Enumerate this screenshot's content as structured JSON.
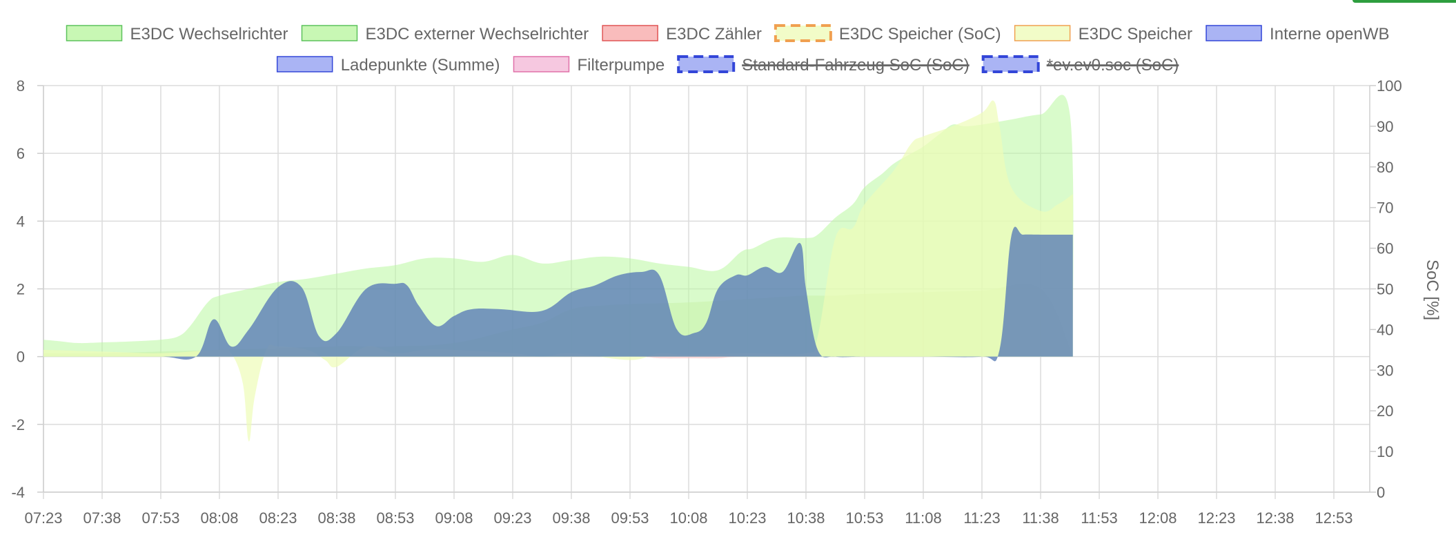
{
  "chart_data": {
    "type": "area",
    "x_ticks": [
      "07:23",
      "07:38",
      "07:53",
      "08:08",
      "08:23",
      "08:38",
      "08:53",
      "09:08",
      "09:23",
      "09:38",
      "09:53",
      "10:08",
      "10:23",
      "10:38",
      "10:53",
      "11:08",
      "11:23",
      "11:38",
      "11:53",
      "12:08",
      "12:23",
      "12:38",
      "12:53"
    ],
    "y_left": {
      "min": -4,
      "max": 8,
      "ticks": [
        8,
        6,
        4,
        2,
        0,
        -2,
        -4
      ]
    },
    "y_right": {
      "min": 0,
      "max": 100,
      "ticks": [
        100,
        90,
        80,
        70,
        60,
        50,
        40,
        30,
        20,
        10,
        0
      ],
      "label": "SoC [%]"
    },
    "grid": true,
    "legend_position": "top",
    "legend": [
      {
        "label": "E3DC Wechselrichter",
        "fill": "#c8f7b4",
        "stroke": "#5cc25c",
        "dashed": false,
        "hidden": false
      },
      {
        "label": "E3DC externer Wechselrichter",
        "fill": "#c8f7b4",
        "stroke": "#5cc25c",
        "dashed": false,
        "hidden": false
      },
      {
        "label": "E3DC Zähler",
        "fill": "#f9bcbc",
        "stroke": "#e05555",
        "dashed": false,
        "hidden": false
      },
      {
        "label": "E3DC Speicher (SoC)",
        "fill": "#f2fcc8",
        "stroke": "#f0a050",
        "dashed": true,
        "hidden": false
      },
      {
        "label": "E3DC Speicher",
        "fill": "#f2fcc8",
        "stroke": "#f0a050",
        "dashed": false,
        "hidden": false
      },
      {
        "label": "Interne openWB",
        "fill": "#aab4f4",
        "stroke": "#3346d8",
        "dashed": false,
        "hidden": false
      },
      {
        "label": "Ladepunkte (Summe)",
        "fill": "#aab4f4",
        "stroke": "#3346d8",
        "dashed": false,
        "hidden": false
      },
      {
        "label": "Filterpumpe",
        "fill": "#f6c8e0",
        "stroke": "#e070a8",
        "dashed": false,
        "hidden": false
      },
      {
        "label": "Standard-Fahrzeug SoC (SoC)",
        "fill": "#aab4f4",
        "stroke": "#3346d8",
        "dashed": true,
        "hidden": true
      },
      {
        "label": "*ev.ev0.soc (SoC)",
        "fill": "#aab4f4",
        "stroke": "#3346d8",
        "dashed": true,
        "hidden": true
      }
    ],
    "series": [
      {
        "name": "E3DC Wechselrichter",
        "fill": "#b9f7a0",
        "opacity": 0.55,
        "x": [
          0,
          0.3,
          0.6,
          1,
          1.5,
          2,
          2.3,
          2.5,
          2.8,
          3,
          3.5,
          4,
          4.5,
          5,
          5.5,
          6,
          6.5,
          7,
          7.5,
          8,
          8.5,
          9,
          9.5,
          10,
          10.5,
          11,
          11.5,
          11.9,
          12.1,
          12.5,
          13,
          13.2,
          13.5,
          13.8,
          14,
          14.3,
          14.5,
          14.8,
          15,
          15.3,
          15.5,
          15.7,
          16,
          16.5,
          17,
          17.5,
          17.55
        ],
        "y": [
          0.5,
          0.45,
          0.4,
          0.42,
          0.45,
          0.5,
          0.6,
          0.9,
          1.6,
          1.8,
          2.0,
          2.2,
          2.3,
          2.45,
          2.6,
          2.7,
          2.9,
          2.9,
          2.8,
          3.0,
          2.75,
          2.85,
          2.95,
          2.9,
          2.75,
          2.65,
          2.55,
          3.1,
          3.2,
          3.5,
          3.5,
          3.6,
          4.1,
          4.5,
          5.0,
          5.4,
          5.7,
          6.0,
          6.2,
          6.6,
          6.85,
          6.8,
          6.85,
          7.0,
          7.15,
          7.15,
          0
        ]
      },
      {
        "name": "E3DC externer Wechselrichter",
        "fill": "#c8f2a8",
        "opacity": 0.5,
        "x": [
          0,
          1,
          2,
          3,
          4,
          5,
          6,
          7,
          8,
          8.5,
          9,
          9.5,
          10,
          11,
          12,
          12.5,
          13,
          13.5,
          14,
          15,
          16,
          17,
          17.55
        ],
        "y": [
          0.1,
          0.1,
          0.15,
          0.2,
          0.25,
          0.3,
          0.3,
          0.4,
          0.8,
          1.0,
          1.4,
          1.5,
          1.55,
          1.6,
          1.7,
          1.75,
          1.8,
          1.8,
          1.85,
          1.9,
          1.95,
          2.0,
          0
        ]
      },
      {
        "name": "E3DC Zähler",
        "fill": "#f9bcbc",
        "opacity": 0.5,
        "x": [
          0,
          2,
          4,
          6,
          8,
          10,
          10.5,
          11,
          11.5,
          12,
          14,
          16,
          17.55
        ],
        "y": [
          0,
          0,
          0,
          0,
          0,
          0,
          -0.05,
          -0.05,
          -0.05,
          0,
          0,
          0,
          0
        ]
      },
      {
        "name": "E3DC Speicher",
        "fill": "#eefcb8",
        "opacity": 0.7,
        "x": [
          0,
          1,
          2,
          3,
          3.2,
          3.4,
          3.5,
          3.6,
          3.8,
          4,
          4.5,
          4.8,
          5,
          5.5,
          6,
          6.5,
          7,
          8,
          8.5,
          9,
          10,
          10.5,
          11,
          12,
          13,
          13.2,
          13.5,
          13.8,
          14,
          14.5,
          14.8,
          15,
          15.5,
          16,
          16.2,
          16.3,
          16.5,
          17,
          17.3,
          17.55
        ],
        "y": [
          0.2,
          0.15,
          0.1,
          0.2,
          0.1,
          -0.8,
          -2.5,
          -1.2,
          0.2,
          0.3,
          0.2,
          -0.1,
          -0.3,
          0.3,
          0.1,
          0.2,
          0.2,
          0.1,
          0,
          0.1,
          -0.1,
          0.1,
          0.05,
          0.1,
          0.1,
          0.6,
          3.5,
          3.8,
          4.5,
          5.5,
          6.3,
          6.5,
          6.8,
          7.2,
          7.55,
          6.8,
          5.0,
          4.3,
          4.5,
          4.8
        ]
      },
      {
        "name": "Interne openWB",
        "fill": "#5b7eb7",
        "opacity": 0.8,
        "x": [
          0,
          1,
          2,
          2.6,
          2.9,
          3.2,
          3.5,
          4,
          4.4,
          4.7,
          5,
          5.5,
          6,
          6.2,
          6.4,
          6.7,
          7,
          7.3,
          7.8,
          8.5,
          9,
          9.4,
          9.8,
          10.2,
          10.5,
          10.8,
          11.1,
          11.3,
          11.5,
          11.8,
          12,
          12.3,
          12.6,
          12.9,
          13,
          13.2,
          13.5,
          14,
          15,
          16,
          16.3,
          16.5,
          16.7,
          17,
          17.55
        ],
        "y": [
          0,
          0,
          0,
          0,
          1.1,
          0.3,
          0.8,
          2.05,
          2.05,
          0.6,
          0.7,
          2.0,
          2.15,
          2.1,
          1.5,
          0.9,
          1.2,
          1.4,
          1.4,
          1.35,
          1.9,
          2.1,
          2.4,
          2.5,
          2.4,
          0.8,
          0.7,
          1.0,
          2.0,
          2.4,
          2.4,
          2.65,
          2.5,
          3.35,
          2.0,
          0.2,
          0,
          0,
          0,
          0,
          0.2,
          3.55,
          3.6,
          3.6,
          3.6
        ]
      }
    ]
  }
}
